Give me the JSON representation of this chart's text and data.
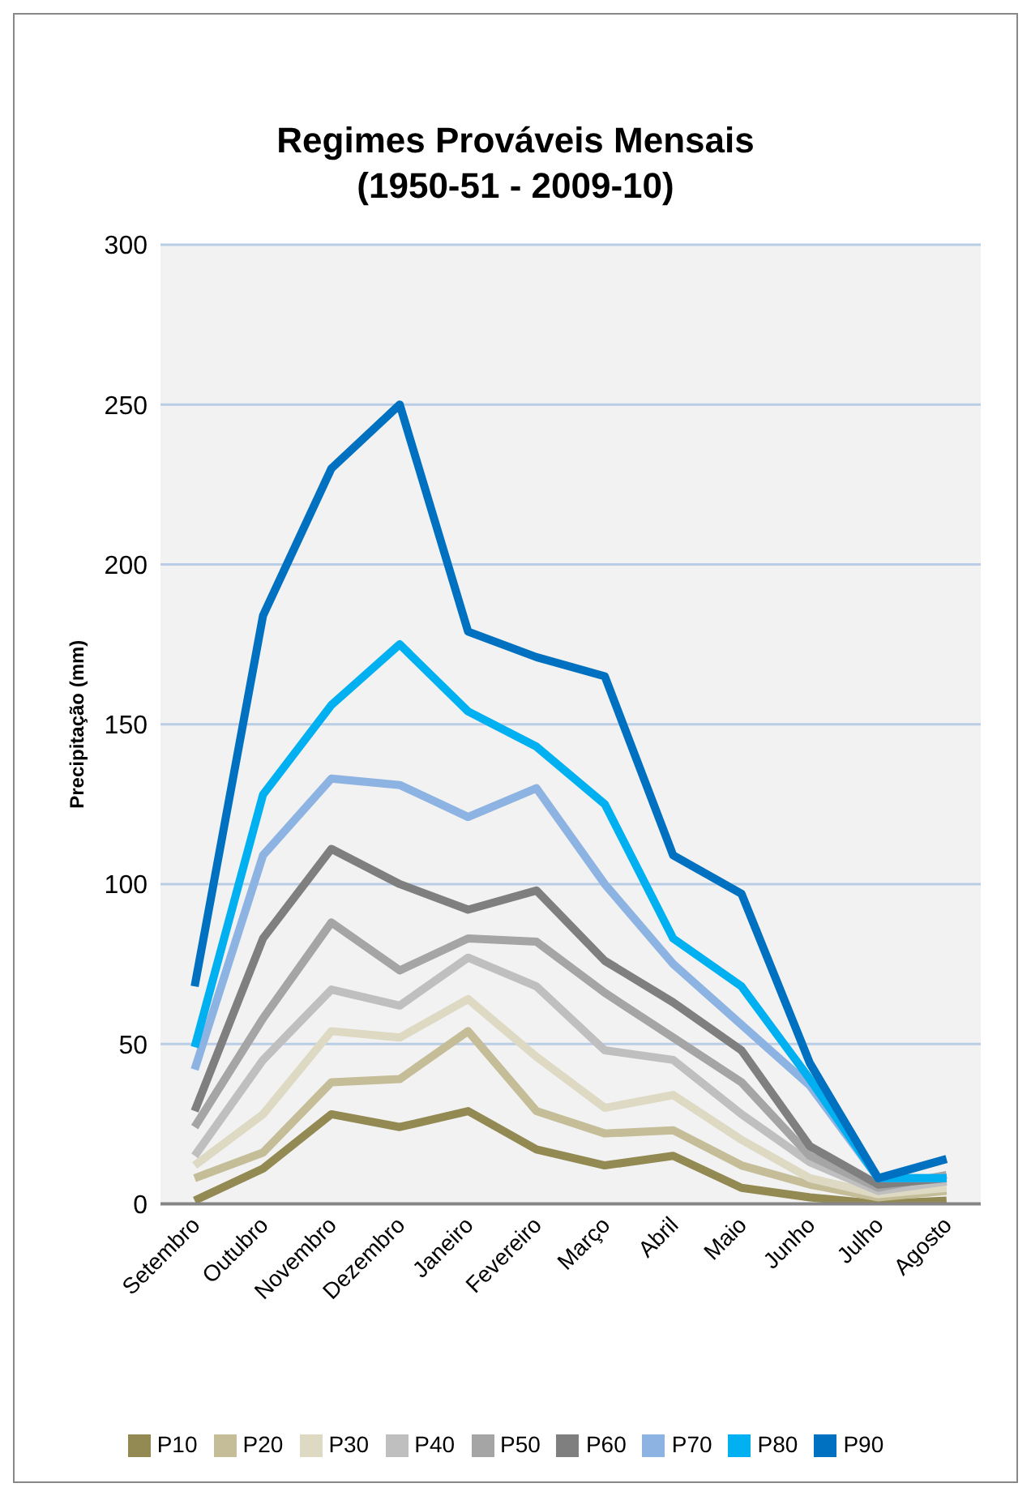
{
  "chart_data": {
    "type": "line",
    "title": "Regimes Prováveis Mensais\n(1950-51 - 2009-10)",
    "ylabel": "Precipitação (mm)",
    "categories": [
      "Setembro",
      "Outubro",
      "Novembro",
      "Dezembro",
      "Janeiro",
      "Fevereiro",
      "Março",
      "Abril",
      "Maio",
      "Junho",
      "Julho",
      "Agosto"
    ],
    "series": [
      {
        "name": "P10",
        "color": "#938953",
        "values": [
          1,
          11,
          28,
          24,
          29,
          17,
          12,
          15,
          5,
          2,
          0,
          1
        ]
      },
      {
        "name": "P20",
        "color": "#c4bd97",
        "values": [
          8,
          16,
          38,
          39,
          54,
          29,
          22,
          23,
          12,
          6,
          2,
          4
        ]
      },
      {
        "name": "P30",
        "color": "#ddd9c3",
        "values": [
          12,
          28,
          54,
          52,
          64,
          46,
          30,
          34,
          20,
          8,
          3,
          5
        ]
      },
      {
        "name": "P40",
        "color": "#bfbfbf",
        "values": [
          15,
          45,
          67,
          62,
          77,
          68,
          48,
          45,
          28,
          13,
          4,
          7
        ]
      },
      {
        "name": "P50",
        "color": "#a5a5a5",
        "values": [
          24,
          58,
          88,
          73,
          83,
          82,
          66,
          52,
          38,
          15,
          5,
          9
        ]
      },
      {
        "name": "P60",
        "color": "#7f7f7f",
        "values": [
          29,
          83,
          111,
          100,
          92,
          98,
          76,
          63,
          48,
          18,
          6,
          8
        ]
      },
      {
        "name": "P70",
        "color": "#8db3e2",
        "values": [
          42,
          109,
          133,
          131,
          121,
          130,
          100,
          75,
          56,
          37,
          8,
          8
        ]
      },
      {
        "name": "P80",
        "color": "#00b0f0",
        "values": [
          49,
          128,
          156,
          175,
          154,
          143,
          125,
          83,
          68,
          39,
          8,
          8
        ]
      },
      {
        "name": "P90",
        "color": "#0070c0",
        "values": [
          68,
          184,
          230,
          250,
          179,
          171,
          165,
          109,
          97,
          44,
          8,
          14
        ]
      }
    ],
    "ylim": [
      0,
      300
    ],
    "yticks": [
      0,
      50,
      100,
      150,
      200,
      250,
      300
    ],
    "grid": "y",
    "legend": "bottom",
    "marker": "none",
    "line_style": "solid"
  }
}
